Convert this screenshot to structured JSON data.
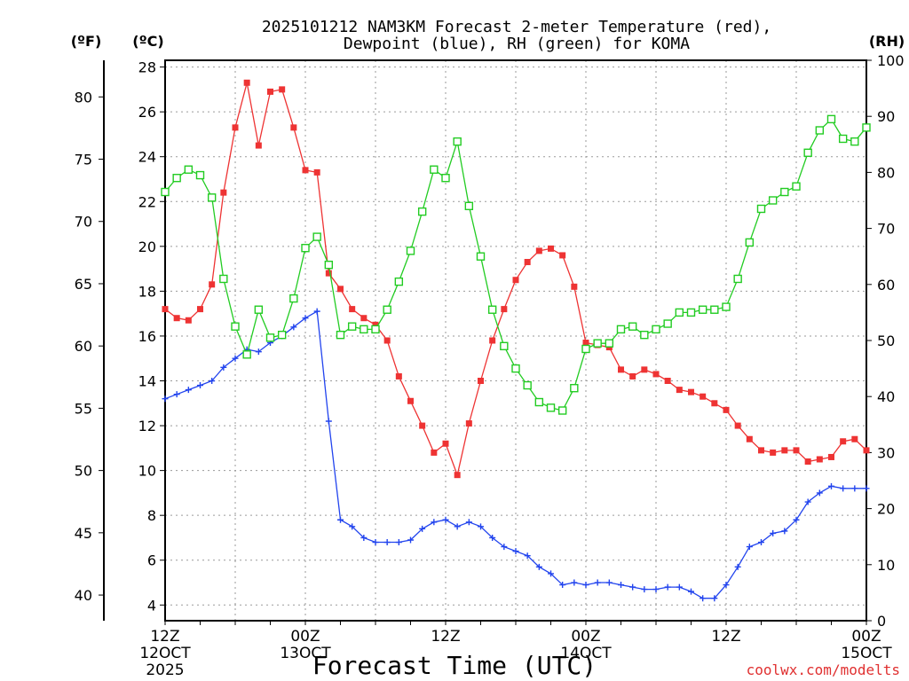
{
  "chart_data": {
    "type": "line",
    "title_line1": "2025101212 NAM3KM Forecast 2-meter Temperature (red),",
    "title_line2": "Dewpoint (blue), RH (green) for KOMA",
    "xlabel": "Forecast Time (UTC)",
    "watermark": "coolwx.com/modelts",
    "unit_f": "(ºF)",
    "unit_c": "(ºC)",
    "unit_rh": "(RH)",
    "x_range_hours": [
      0,
      60
    ],
    "y_c_range": [
      3.3,
      28.3
    ],
    "y_rh_range": [
      0,
      100
    ],
    "c_ticks": [
      4,
      6,
      8,
      10,
      12,
      14,
      16,
      18,
      20,
      22,
      24,
      26,
      28
    ],
    "f_ticks": [
      40,
      45,
      50,
      55,
      60,
      65,
      70,
      75,
      80
    ],
    "rh_ticks": [
      0,
      10,
      20,
      30,
      40,
      50,
      60,
      70,
      80,
      90,
      100
    ],
    "x_ticks": [
      {
        "hour": 0,
        "line1": "12Z",
        "line2": "12OCT",
        "line3": "2025"
      },
      {
        "hour": 12,
        "line1": "00Z",
        "line2": "13OCT",
        "line3": ""
      },
      {
        "hour": 24,
        "line1": "12Z",
        "line2": "",
        "line3": ""
      },
      {
        "hour": 36,
        "line1": "00Z",
        "line2": "14OCT",
        "line3": ""
      },
      {
        "hour": 48,
        "line1": "12Z",
        "line2": "",
        "line3": ""
      },
      {
        "hour": 60,
        "line1": "00Z",
        "line2": "15OCT",
        "line3": ""
      }
    ],
    "series": [
      {
        "name": "Temperature (°C)",
        "color": "#ee3333",
        "marker": "filled-square",
        "axis": "c",
        "x": [
          0,
          1,
          2,
          3,
          4,
          5,
          6,
          7,
          8,
          9,
          10,
          11,
          12,
          13,
          14,
          15,
          16,
          17,
          18,
          19,
          20,
          21,
          22,
          23,
          24,
          25,
          26,
          27,
          28,
          29,
          30,
          31,
          32,
          33,
          34,
          35,
          36,
          37,
          38,
          39,
          40,
          41,
          42,
          43,
          44,
          45,
          46,
          47,
          48,
          49,
          50,
          51,
          52,
          53,
          54,
          55,
          56,
          57,
          58,
          59,
          60
        ],
        "values": [
          17.2,
          16.8,
          16.7,
          17.2,
          18.3,
          22.4,
          25.3,
          27.3,
          24.5,
          26.9,
          27.0,
          25.3,
          23.4,
          23.3,
          18.8,
          18.1,
          17.2,
          16.8,
          16.5,
          15.8,
          14.2,
          13.1,
          12.0,
          10.8,
          11.2,
          9.8,
          12.1,
          14.0,
          15.8,
          17.2,
          18.5,
          19.3,
          19.8,
          19.9,
          19.6,
          18.2,
          15.7,
          15.6,
          15.5,
          14.5,
          14.2,
          14.5,
          14.3,
          14.0,
          13.6,
          13.5,
          13.3,
          13.0,
          12.7,
          12.0,
          11.4,
          10.9,
          10.8,
          10.9,
          10.9,
          10.4,
          10.5,
          10.6,
          11.3,
          11.4,
          10.9
        ]
      },
      {
        "name": "Dewpoint (°C)",
        "color": "#2244ee",
        "marker": "plus",
        "axis": "c",
        "x": [
          0,
          1,
          2,
          3,
          4,
          5,
          6,
          7,
          8,
          9,
          10,
          11,
          12,
          13,
          14,
          15,
          16,
          17,
          18,
          19,
          20,
          21,
          22,
          23,
          24,
          25,
          26,
          27,
          28,
          29,
          30,
          31,
          32,
          33,
          34,
          35,
          36,
          37,
          38,
          39,
          40,
          41,
          42,
          43,
          44,
          45,
          46,
          47,
          48,
          49,
          50,
          51,
          52,
          53,
          54,
          55,
          56,
          57,
          58,
          59,
          60
        ],
        "values": [
          13.2,
          13.4,
          13.6,
          13.8,
          14.0,
          14.6,
          15.0,
          15.4,
          15.3,
          15.7,
          16.0,
          16.4,
          16.8,
          17.1,
          12.2,
          7.8,
          7.5,
          7.0,
          6.8,
          6.8,
          6.8,
          6.9,
          7.4,
          7.7,
          7.8,
          7.5,
          7.7,
          7.5,
          7.0,
          6.6,
          6.4,
          6.2,
          5.7,
          5.4,
          4.9,
          5.0,
          4.9,
          5.0,
          5.0,
          4.9,
          4.8,
          4.7,
          4.7,
          4.8,
          4.8,
          4.6,
          4.3,
          4.3,
          4.9,
          5.7,
          6.6,
          6.8,
          7.2,
          7.3,
          7.8,
          8.6,
          9.0,
          9.3,
          9.2,
          9.2,
          9.2
        ]
      },
      {
        "name": "RH (%)",
        "color": "#22cc22",
        "marker": "open-square",
        "axis": "rh",
        "x": [
          0,
          1,
          2,
          3,
          4,
          5,
          6,
          7,
          8,
          9,
          10,
          11,
          12,
          13,
          14,
          15,
          16,
          17,
          18,
          19,
          20,
          21,
          22,
          23,
          24,
          25,
          26,
          27,
          28,
          29,
          30,
          31,
          32,
          33,
          34,
          35,
          36,
          37,
          38,
          39,
          40,
          41,
          42,
          43,
          44,
          45,
          46,
          47,
          48,
          49,
          50,
          51,
          52,
          53,
          54,
          55,
          56,
          57,
          58,
          59,
          60
        ],
        "values": [
          76.5,
          79.0,
          80.5,
          79.5,
          75.5,
          61.0,
          52.5,
          47.5,
          55.5,
          50.5,
          51.0,
          57.5,
          66.5,
          68.5,
          63.5,
          51.0,
          52.5,
          52.0,
          52.0,
          55.5,
          60.5,
          66.0,
          73.0,
          80.5,
          79.0,
          85.5,
          74.0,
          65.0,
          55.5,
          49.0,
          45.0,
          42.0,
          39.0,
          38.0,
          37.5,
          41.5,
          48.5,
          49.5,
          49.5,
          52.0,
          52.5,
          51.0,
          52.0,
          53.0,
          55.0,
          55.0,
          55.5,
          55.5,
          56.0,
          61.0,
          67.5,
          73.5,
          75.0,
          76.5,
          77.5,
          83.5,
          87.5,
          89.5,
          86.0,
          85.5,
          88.0
        ]
      }
    ]
  }
}
